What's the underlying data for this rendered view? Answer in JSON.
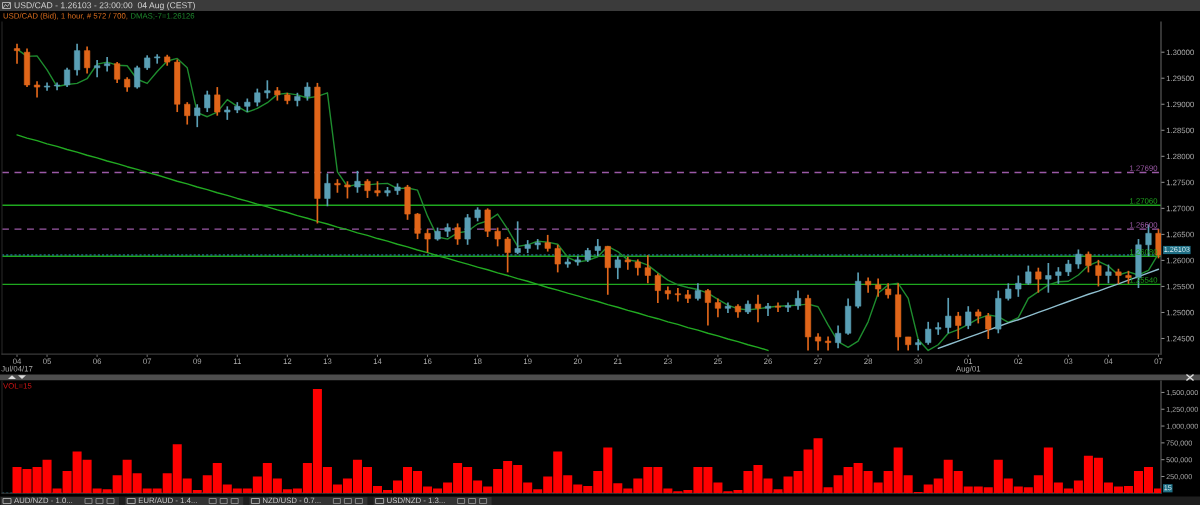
{
  "chart_data": [
    {
      "type": "candlestick",
      "title": "USD/CAD - 1.26103 - 23:00:00  04 Aug (CEST)",
      "subtitle": "USD/CAD (Bid), 1 hour, # 572 / 700,",
      "categories": [
        "04\nJul/04/17",
        null,
        null,
        "05",
        null,
        null,
        null,
        null,
        "06",
        null,
        null,
        null,
        null,
        "07",
        null,
        null,
        null,
        null,
        "09",
        null,
        null,
        null,
        "11",
        null,
        null,
        null,
        null,
        "12",
        null,
        null,
        null,
        "13",
        null,
        null,
        null,
        null,
        "14",
        null,
        null,
        null,
        null,
        "16",
        null,
        null,
        null,
        null,
        "18",
        null,
        null,
        null,
        null,
        "19",
        null,
        null,
        null,
        null,
        "20",
        null,
        null,
        null,
        "21",
        null,
        null,
        null,
        null,
        "23",
        null,
        null,
        null,
        null,
        "25",
        null,
        null,
        null,
        null,
        "26",
        null,
        null,
        null,
        null,
        "27",
        null,
        null,
        null,
        null,
        "28",
        null,
        null,
        null,
        null,
        "30",
        null,
        null,
        null,
        null,
        "01\nAug/01",
        null,
        null,
        null,
        null,
        "02",
        null,
        null,
        null,
        null,
        "03",
        null,
        null,
        null,
        "04",
        null,
        null,
        null,
        null,
        "07"
      ],
      "ohlc": [
        [
          1.3007,
          1.3016,
          1.2978,
          1.3003
        ],
        [
          1.3,
          1.3007,
          1.2933,
          1.2937
        ],
        [
          1.2937,
          1.2944,
          1.2913,
          1.2933
        ],
        [
          1.2933,
          1.2942,
          1.2926,
          1.2935
        ],
        [
          1.2935,
          1.2942,
          1.2927,
          1.2937
        ],
        [
          1.2937,
          1.297,
          1.2933,
          1.2966
        ],
        [
          1.2966,
          1.3016,
          1.2955,
          1.3003
        ],
        [
          1.3003,
          1.3011,
          1.2959,
          1.297
        ],
        [
          1.297,
          1.2985,
          1.2952,
          1.2974
        ],
        [
          1.2974,
          1.2991,
          1.2963,
          1.2978
        ],
        [
          1.2978,
          1.2981,
          1.2941,
          1.2948
        ],
        [
          1.2948,
          1.2952,
          1.2924,
          1.2933
        ],
        [
          1.2933,
          1.2974,
          1.293,
          1.297
        ],
        [
          1.297,
          1.2994,
          1.2966,
          1.2989
        ],
        [
          1.2989,
          1.2996,
          1.2978,
          1.2991
        ],
        [
          1.2991,
          1.2995,
          1.2974,
          1.2981
        ],
        [
          1.2981,
          1.2986,
          1.2885,
          1.29
        ],
        [
          1.29,
          1.2904,
          1.2861,
          1.2878
        ],
        [
          1.2878,
          1.29,
          1.2856,
          1.2893
        ],
        [
          1.2893,
          1.2926,
          1.2885,
          1.2918
        ],
        [
          1.2918,
          1.2933,
          1.2878,
          1.2885
        ],
        [
          1.2885,
          1.2896,
          1.287,
          1.2889
        ],
        [
          1.2889,
          1.2904,
          1.2883,
          1.2896
        ],
        [
          1.2896,
          1.2911,
          1.2885,
          1.2904
        ],
        [
          1.2904,
          1.293,
          1.2896,
          1.2922
        ],
        [
          1.2922,
          1.2946,
          1.2911,
          1.2926
        ],
        [
          1.2926,
          1.2933,
          1.2907,
          1.2918
        ],
        [
          1.2918,
          1.2922,
          1.29,
          1.2907
        ],
        [
          1.2907,
          1.2922,
          1.2896,
          1.2915
        ],
        [
          1.2915,
          1.2942,
          1.2907,
          1.2933
        ],
        [
          1.2933,
          1.2941,
          1.2671,
          1.2719
        ],
        [
          1.2719,
          1.2767,
          1.2704,
          1.2748
        ],
        [
          1.2748,
          1.2756,
          1.273,
          1.2745
        ],
        [
          1.2745,
          1.2752,
          1.2719,
          1.2741
        ],
        [
          1.2741,
          1.2772,
          1.273,
          1.2752
        ],
        [
          1.2752,
          1.2756,
          1.272,
          1.2734
        ],
        [
          1.2734,
          1.2752,
          1.2723,
          1.273
        ],
        [
          1.273,
          1.2741,
          1.2723,
          1.2734
        ],
        [
          1.2734,
          1.2748,
          1.2726,
          1.2741
        ],
        [
          1.2741,
          1.2745,
          1.2678,
          1.2689
        ],
        [
          1.2689,
          1.2691,
          1.2641,
          1.2652
        ],
        [
          1.2652,
          1.266,
          1.2615,
          1.2641
        ],
        [
          1.2641,
          1.2663,
          1.2638,
          1.2656
        ],
        [
          1.2656,
          1.2671,
          1.2645,
          1.2663
        ],
        [
          1.2663,
          1.2671,
          1.263,
          1.2641
        ],
        [
          1.2641,
          1.2689,
          1.263,
          1.2682
        ],
        [
          1.2682,
          1.2702,
          1.2675,
          1.2697
        ],
        [
          1.2697,
          1.27,
          1.2645,
          1.2656
        ],
        [
          1.2656,
          1.2663,
          1.2627,
          1.2641
        ],
        [
          1.2641,
          1.2645,
          1.2577,
          1.2615
        ],
        [
          1.2615,
          1.2675,
          1.2612,
          1.2623
        ],
        [
          1.2623,
          1.2639,
          1.2614,
          1.263
        ],
        [
          1.263,
          1.2641,
          1.2621,
          1.2634
        ],
        [
          1.2634,
          1.2649,
          1.2617,
          1.2623
        ],
        [
          1.2623,
          1.263,
          1.2577,
          1.2593
        ],
        [
          1.2593,
          1.2604,
          1.2586,
          1.2597
        ],
        [
          1.2597,
          1.2608,
          1.259,
          1.2601
        ],
        [
          1.2601,
          1.2624,
          1.2597,
          1.2619
        ],
        [
          1.2619,
          1.2641,
          1.2608,
          1.2627
        ],
        [
          1.2627,
          1.2627,
          1.2534,
          1.2586
        ],
        [
          1.2586,
          1.2608,
          1.2564,
          1.2601
        ],
        [
          1.2601,
          1.2607,
          1.2582,
          1.2597
        ],
        [
          1.2597,
          1.2602,
          1.2571,
          1.2586
        ],
        [
          1.2586,
          1.261,
          1.2556,
          1.2571
        ],
        [
          1.2571,
          1.2575,
          1.2518,
          1.2542
        ],
        [
          1.2542,
          1.255,
          1.2525,
          1.2536
        ],
        [
          1.2536,
          1.2547,
          1.2521,
          1.2534
        ],
        [
          1.2534,
          1.2543,
          1.2518,
          1.2527
        ],
        [
          1.2527,
          1.2556,
          1.2523,
          1.2542
        ],
        [
          1.2542,
          1.2545,
          1.2475,
          1.2519
        ],
        [
          1.2519,
          1.2527,
          1.2491,
          1.2508
        ],
        [
          1.2508,
          1.2519,
          1.2499,
          1.2512
        ],
        [
          1.2512,
          1.2516,
          1.249,
          1.2501
        ],
        [
          1.2501,
          1.2523,
          1.2497,
          1.2516
        ],
        [
          1.2516,
          1.2534,
          1.2481,
          1.2508
        ],
        [
          1.2508,
          1.2518,
          1.2493,
          1.2512
        ],
        [
          1.2512,
          1.2519,
          1.2501,
          1.251
        ],
        [
          1.251,
          1.2519,
          1.2501,
          1.2513
        ],
        [
          1.2513,
          1.2542,
          1.2505,
          1.2527
        ],
        [
          1.2527,
          1.2534,
          1.2427,
          1.2453
        ],
        [
          1.2453,
          1.246,
          1.2427,
          1.2445
        ],
        [
          1.2445,
          1.2454,
          1.2427,
          1.2442
        ],
        [
          1.2442,
          1.2475,
          1.2431,
          1.246
        ],
        [
          1.246,
          1.2527,
          1.2457,
          1.2512
        ],
        [
          1.2512,
          1.2577,
          1.2508,
          1.256
        ],
        [
          1.256,
          1.2567,
          1.2538,
          1.2553
        ],
        [
          1.2553,
          1.2565,
          1.253,
          1.2545
        ],
        [
          1.2545,
          1.2556,
          1.2527,
          1.2534
        ],
        [
          1.2534,
          1.2556,
          1.2427,
          1.2453
        ],
        [
          1.2453,
          1.2453,
          1.2427,
          1.2438
        ],
        [
          1.2438,
          1.2449,
          1.2427,
          1.2442
        ],
        [
          1.2442,
          1.2482,
          1.2438,
          1.2468
        ],
        [
          1.2468,
          1.2481,
          1.2457,
          1.2471
        ],
        [
          1.2471,
          1.2528,
          1.246,
          1.2493
        ],
        [
          1.2493,
          1.2501,
          1.2449,
          1.2475
        ],
        [
          1.2475,
          1.2512,
          1.2468,
          1.2501
        ],
        [
          1.2501,
          1.2506,
          1.2479,
          1.2493
        ],
        [
          1.2493,
          1.2499,
          1.2449,
          1.2468
        ],
        [
          1.2468,
          1.2542,
          1.246,
          1.2527
        ],
        [
          1.2527,
          1.2556,
          1.2523,
          1.2545
        ],
        [
          1.2545,
          1.2571,
          1.253,
          1.2556
        ],
        [
          1.2556,
          1.259,
          1.2553,
          1.2578
        ],
        [
          1.2578,
          1.2586,
          1.2538,
          1.2564
        ],
        [
          1.2564,
          1.2595,
          1.2538,
          1.2571
        ],
        [
          1.2571,
          1.2587,
          1.2555,
          1.2578
        ],
        [
          1.2578,
          1.2601,
          1.257,
          1.2593
        ],
        [
          1.2593,
          1.2621,
          1.2584,
          1.2612
        ],
        [
          1.2612,
          1.2617,
          1.2577,
          1.259
        ],
        [
          1.259,
          1.2601,
          1.255,
          1.2571
        ],
        [
          1.2571,
          1.2592,
          1.2556,
          1.2578
        ],
        [
          1.2578,
          1.2584,
          1.2555,
          1.2571
        ],
        [
          1.2571,
          1.258,
          1.2555,
          1.2567
        ],
        [
          1.2567,
          1.2641,
          1.2547,
          1.263
        ],
        [
          1.263,
          1.2669,
          1.2608,
          1.2652
        ],
        [
          1.2652,
          1.266,
          1.2604,
          1.26103
        ]
      ],
      "colors": [
        "#e0661a",
        "#e0661a",
        "#e0661a",
        "#5a9fb5",
        "#5a9fb5",
        "#5a9fb5",
        "#5a9fb5",
        "#e0661a",
        "#5a9fb5",
        "#5a9fb5",
        "#e0661a",
        "#e0661a",
        "#5a9fb5",
        "#5a9fb5",
        "#5a9fb5",
        "#e0661a",
        "#e0661a",
        "#e0661a",
        "#5a9fb5",
        "#5a9fb5",
        "#e0661a",
        "#5a9fb5",
        "#5a9fb5",
        "#5a9fb5",
        "#5a9fb5",
        "#5a9fb5",
        "#e0661a",
        "#e0661a",
        "#5a9fb5",
        "#5a9fb5",
        "#e0661a",
        "#5a9fb5",
        "#e0661a",
        "#e0661a",
        "#5a9fb5",
        "#e0661a",
        "#e0661a",
        "#5a9fb5",
        "#5a9fb5",
        "#e0661a",
        "#e0661a",
        "#e0661a",
        "#5a9fb5",
        "#5a9fb5",
        "#e0661a",
        "#5a9fb5",
        "#5a9fb5",
        "#e0661a",
        "#e0661a",
        "#e0661a",
        "#5a9fb5",
        "#5a9fb5",
        "#5a9fb5",
        "#e0661a",
        "#e0661a",
        "#5a9fb5",
        "#5a9fb5",
        "#5a9fb5",
        "#5a9fb5",
        "#e0661a",
        "#5a9fb5",
        "#e0661a",
        "#e0661a",
        "#e0661a",
        "#e0661a",
        "#e0661a",
        "#e0661a",
        "#e0661a",
        "#5a9fb5",
        "#e0661a",
        "#e0661a",
        "#5a9fb5",
        "#e0661a",
        "#5a9fb5",
        "#e0661a",
        "#5a9fb5",
        "#e0661a",
        "#5a9fb5",
        "#5a9fb5",
        "#e0661a",
        "#e0661a",
        "#e0661a",
        "#5a9fb5",
        "#5a9fb5",
        "#5a9fb5",
        "#e0661a",
        "#e0661a",
        "#e0661a",
        "#e0661a",
        "#e0661a",
        "#5a9fb5",
        "#5a9fb5",
        "#5a9fb5",
        "#5a9fb5",
        "#e0661a",
        "#5a9fb5",
        "#e0661a",
        "#e0661a",
        "#5a9fb5",
        "#5a9fb5",
        "#5a9fb5",
        "#5a9fb5",
        "#e0661a",
        "#5a9fb5",
        "#5a9fb5",
        "#5a9fb5",
        "#5a9fb5",
        "#e0661a",
        "#e0661a",
        "#5a9fb5",
        "#e0661a",
        "#e0661a",
        "#5a9fb5",
        "#5a9fb5",
        "#e0661a"
      ],
      "series": [
        {
          "type": "line",
          "name": "DMAS;-7=1.26126",
          "color": "#1e8c2e",
          "values": [
            1.3006,
            1.2992,
            1.2993,
            1.2966,
            1.2934,
            1.2938,
            1.294,
            1.2949,
            1.2977,
            1.2981,
            1.2975,
            1.2974,
            1.2948,
            1.294,
            1.2963,
            1.2983,
            1.2988,
            1.297,
            1.2884,
            1.2876,
            1.2885,
            1.2909,
            1.2896,
            1.2885,
            1.2892,
            1.2903,
            1.2919,
            1.2921,
            1.2918,
            1.2912,
            1.2915,
            1.2922,
            1.277,
            1.2742,
            1.2746,
            1.2745,
            1.2747,
            1.2748,
            1.2738,
            1.2739,
            1.2735,
            1.2685,
            1.2645,
            1.2641,
            1.2653,
            1.2656,
            1.267,
            1.2676,
            1.2689,
            1.266,
            1.2627,
            1.263,
            1.2637,
            1.2635,
            1.2631,
            1.2606,
            1.2597,
            1.26,
            1.2607,
            1.2627,
            1.2617,
            1.2601,
            1.2598,
            1.2591,
            1.2576,
            1.2562,
            1.2553,
            1.2548,
            1.2544,
            1.2537,
            1.2525,
            1.2514,
            1.2507,
            1.2505,
            1.2507,
            1.251,
            1.2512,
            1.2513,
            1.2514,
            1.2516,
            1.2511,
            1.2476,
            1.2444,
            1.2433,
            1.2445,
            1.2482,
            1.2537,
            1.2553,
            1.2556,
            1.2527,
            1.2448,
            1.2427,
            1.2438,
            1.246,
            1.2467,
            1.2477,
            1.2488,
            1.2495,
            1.2492,
            1.2481,
            1.249,
            1.2527,
            1.254,
            1.2553,
            1.2559,
            1.256,
            1.2572,
            1.259,
            1.2598,
            1.2589,
            1.2572,
            1.2578,
            1.2572,
            1.2581,
            1.2613
          ]
        },
        {
          "type": "line",
          "color": "#22aa22",
          "values": [
            1.2841,
            1.2835,
            1.283,
            1.2824,
            1.2819,
            1.2813,
            1.2808,
            1.2802,
            1.2797,
            1.2791,
            1.2786,
            1.278,
            1.2775,
            1.2769,
            1.2764,
            1.2758,
            1.2752,
            1.2747,
            1.2741,
            1.2736,
            1.273,
            1.2725,
            1.2719,
            1.2714,
            1.2708,
            1.2703,
            1.2697,
            1.2692,
            1.2686,
            1.2681,
            1.2675,
            1.267,
            1.2664,
            1.2659,
            1.2653,
            1.2648,
            1.2642,
            1.2637,
            1.2631,
            1.2626,
            1.262,
            1.2615,
            1.2609,
            1.2604,
            1.2598,
            1.2593,
            1.2587,
            1.2582,
            1.2576,
            1.2571,
            1.2565,
            1.256,
            1.2554,
            1.2548,
            1.2543,
            1.2537,
            1.2532,
            1.2526,
            1.2521,
            1.2515,
            1.251,
            1.2504,
            1.2499,
            1.2493,
            1.2488,
            1.2482,
            1.2477,
            1.2471,
            1.2466,
            1.246,
            1.2455,
            1.2449,
            1.2444,
            1.2438,
            1.2433,
            1.2427,
            null,
            null,
            null,
            null,
            null,
            null,
            null,
            null,
            null,
            null,
            null,
            null,
            null,
            null,
            null,
            null,
            null,
            null,
            null,
            null,
            null,
            null,
            null,
            null,
            null,
            null,
            null,
            null,
            null,
            null,
            null,
            null,
            null,
            null,
            null,
            null,
            null,
            null,
            null
          ]
        },
        {
          "type": "line",
          "color": "#8fbfcf",
          "values": [
            null,
            null,
            null,
            null,
            null,
            null,
            null,
            null,
            null,
            null,
            null,
            null,
            null,
            null,
            null,
            null,
            null,
            null,
            null,
            null,
            null,
            null,
            null,
            null,
            null,
            null,
            null,
            null,
            null,
            null,
            null,
            null,
            null,
            null,
            null,
            null,
            null,
            null,
            null,
            null,
            null,
            null,
            null,
            null,
            null,
            null,
            null,
            null,
            null,
            null,
            null,
            null,
            null,
            null,
            null,
            null,
            null,
            null,
            null,
            null,
            null,
            null,
            null,
            null,
            null,
            null,
            null,
            null,
            null,
            null,
            null,
            null,
            null,
            null,
            null,
            null,
            null,
            null,
            null,
            null,
            null,
            null,
            null,
            null,
            null,
            null,
            null,
            null,
            null,
            null,
            null,
            null,
            1.2431,
            1.2438,
            1.2445,
            1.2452,
            1.2459,
            1.2466,
            1.2473,
            1.248,
            1.2486,
            1.2493,
            1.25,
            1.2507,
            1.2514,
            1.2521,
            1.2528,
            1.2535,
            1.2541,
            1.2548,
            1.2555,
            1.2562,
            1.2569,
            1.2576,
            1.2583
          ]
        }
      ],
      "ref_lines": [
        {
          "axis": "y",
          "value": 1.2769,
          "label": "1.27690",
          "color": "#9b59a6",
          "line_style": "dashed"
        },
        {
          "axis": "y",
          "value": 1.2706,
          "label": "1.27060",
          "color": "#1fa81f",
          "line_style": "solid"
        },
        {
          "axis": "y",
          "value": 1.266,
          "label": "1.26600",
          "color": "#9b59a6",
          "line_style": "dashed"
        },
        {
          "axis": "y",
          "value": 1.2608,
          "label": "1.26080",
          "color": "#1fa81f",
          "line_style": "solid"
        },
        {
          "axis": "y",
          "value": 1.2554,
          "label": "1.25540",
          "color": "#1fa81f",
          "line_style": "solid"
        },
        {
          "axis": "y",
          "value": 1.26103,
          "label": "1.26103",
          "color": "#1f6f85",
          "line_style": "dotted"
        }
      ],
      "ylim": [
        1.242,
        1.3058
      ],
      "yticks": [
        {
          "value": 1.245,
          "label": "1.24500"
        },
        {
          "value": 1.25,
          "label": "1.25000"
        },
        {
          "value": 1.255,
          "label": "1.25500"
        },
        {
          "value": 1.26,
          "label": "1.26000"
        },
        {
          "value": 1.265,
          "label": "1.26500"
        },
        {
          "value": 1.27,
          "label": "1.27000"
        },
        {
          "value": 1.275,
          "label": "1.27500"
        },
        {
          "value": 1.28,
          "label": "1.28000"
        },
        {
          "value": 1.285,
          "label": "1.28500"
        },
        {
          "value": 1.29,
          "label": "1.29000"
        },
        {
          "value": 1.295,
          "label": "1.29500"
        },
        {
          "value": 1.3,
          "label": "1.30000"
        }
      ]
    },
    {
      "type": "bar",
      "title": "VOL=15",
      "color": "#ff0000",
      "categories": [
        null,
        null,
        null,
        null,
        null,
        null,
        null,
        null,
        null,
        null,
        null,
        null,
        null,
        null,
        null,
        null,
        null,
        null,
        null,
        null,
        null,
        null,
        null,
        null,
        null,
        null,
        null,
        null,
        null,
        null,
        null,
        null,
        null,
        null,
        null,
        null,
        null,
        null,
        null,
        null,
        null,
        null,
        null,
        null,
        null,
        null,
        null,
        null,
        null,
        null,
        null,
        null,
        null,
        null,
        null,
        null,
        null,
        null,
        null,
        null,
        null,
        null,
        null,
        null,
        null,
        null,
        null,
        null,
        null,
        null,
        null,
        null,
        null,
        null,
        null,
        null,
        null,
        null,
        null,
        null,
        null,
        null,
        null,
        null,
        null,
        null,
        null,
        null,
        null,
        null,
        null,
        null,
        null,
        null,
        null,
        null,
        null,
        null,
        null,
        null,
        null,
        null,
        null,
        null,
        null,
        null,
        null,
        null,
        null,
        null,
        null,
        null,
        null,
        null,
        null
      ],
      "values": [
        390000,
        360000,
        390000,
        500000,
        70000,
        330000,
        620000,
        500000,
        70000,
        60000,
        270000,
        500000,
        300000,
        70000,
        70000,
        300000,
        730000,
        220000,
        50000,
        270000,
        450000,
        130000,
        70000,
        70000,
        250000,
        450000,
        220000,
        60000,
        70000,
        450000,
        1550000,
        390000,
        130000,
        220000,
        500000,
        390000,
        110000,
        50000,
        190000,
        390000,
        330000,
        100000,
        70000,
        160000,
        450000,
        390000,
        190000,
        100000,
        360000,
        480000,
        420000,
        160000,
        60000,
        250000,
        620000,
        270000,
        130000,
        110000,
        330000,
        680000,
        150000,
        70000,
        220000,
        390000,
        390000,
        70000,
        30000,
        50000,
        390000,
        390000,
        160000,
        30000,
        50000,
        330000,
        420000,
        220000,
        60000,
        250000,
        330000,
        650000,
        820000,
        90000,
        270000,
        390000,
        450000,
        330000,
        160000,
        330000,
        680000,
        270000,
        20000,
        130000,
        220000,
        500000,
        330000,
        100000,
        100000,
        90000,
        500000,
        220000,
        100000,
        90000,
        270000,
        680000,
        160000,
        70000,
        190000,
        560000,
        530000,
        160000,
        100000,
        110000,
        330000,
        390000,
        70000
      ],
      "ylim": [
        0,
        1670000
      ],
      "yticks": [
        {
          "value": 250000,
          "label": "250,000"
        },
        {
          "value": 500000,
          "label": "500,000"
        },
        {
          "value": 750000,
          "label": "750,000"
        },
        {
          "value": 1000000,
          "label": "1,000,000"
        },
        {
          "value": 1250000,
          "label": "1,250,000"
        },
        {
          "value": 1500000,
          "label": "1,500,000"
        }
      ],
      "tick_labels": "y",
      "ref_lines": [
        {
          "axis": "y",
          "value": 15,
          "label": "15",
          "color": "#1f6f85",
          "line_style": "dotted"
        }
      ],
      "annotations": [
        "AUD/NZD - 1.0...",
        "EUR/AUD - 1.4...",
        "NZD/USD - 0.7...",
        "USD/NZD - 1.3..."
      ]
    }
  ]
}
